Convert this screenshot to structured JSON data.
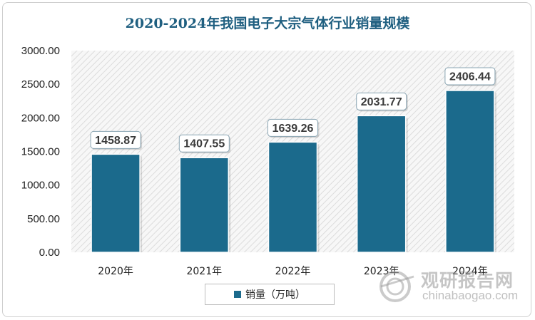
{
  "chart_data": {
    "type": "bar",
    "title": "2020-2024年我国电子大宗气体行业销量规模",
    "categories": [
      "2020年",
      "2021年",
      "2022年",
      "2023年",
      "2024年"
    ],
    "series": [
      {
        "name": "销量（万吨）",
        "values": [
          1458.87,
          1407.55,
          1639.26,
          2031.77,
          2406.44
        ]
      }
    ],
    "value_labels": [
      "1458.87",
      "1407.55",
      "1639.26",
      "2031.77",
      "2406.44"
    ],
    "y_ticks": [
      "0.00",
      "500.00",
      "1000.00",
      "1500.00",
      "2000.00",
      "2500.00",
      "3000.00"
    ],
    "ylim": [
      0,
      3000
    ],
    "xlabel": "",
    "ylabel": "",
    "legend_position": "bottom",
    "bar_color": "#1b6a8c",
    "grid": false
  },
  "watermark": {
    "cn": "观研报告网",
    "en": "chinabaogao.com"
  }
}
